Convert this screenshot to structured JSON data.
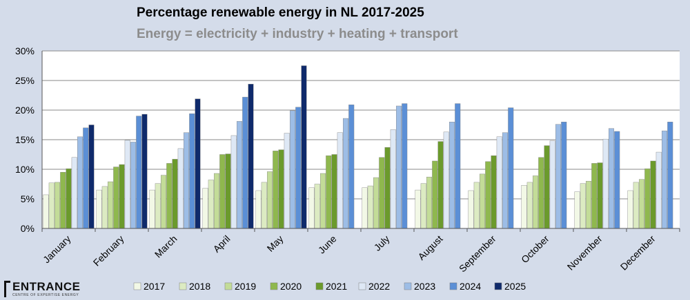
{
  "chart_data": {
    "type": "bar",
    "title": "Percentage renewable energy in NL 2017-2025",
    "subtitle": "Energy = electricity + industry + heating + transport",
    "xlabel": "",
    "ylabel": "",
    "ylim": [
      0,
      30
    ],
    "yticks": [
      "0%",
      "5%",
      "10%",
      "15%",
      "20%",
      "25%",
      "30%"
    ],
    "grid": true,
    "legend_position": "bottom",
    "categories": [
      "January",
      "February",
      "March",
      "April",
      "May",
      "June",
      "July",
      "August",
      "September",
      "October",
      "November",
      "December"
    ],
    "series": [
      {
        "name": "2017",
        "color": "#f2f8e6",
        "values": [
          5.7,
          6.5,
          6.5,
          6.8,
          6.4,
          6.9,
          6.9,
          6.5,
          6.4,
          7.3,
          6.2,
          6.4
        ]
      },
      {
        "name": "2018",
        "color": "#dcebc2",
        "values": [
          7.7,
          7.1,
          7.6,
          8.2,
          7.8,
          7.5,
          7.2,
          7.6,
          7.8,
          7.8,
          7.6,
          7.8
        ]
      },
      {
        "name": "2019",
        "color": "#c3dc98",
        "values": [
          7.8,
          7.9,
          9.0,
          9.3,
          9.6,
          9.3,
          8.6,
          8.7,
          9.2,
          8.9,
          8.0,
          8.3
        ]
      },
      {
        "name": "2020",
        "color": "#8fb84e",
        "values": [
          9.5,
          10.4,
          11.0,
          12.5,
          13.1,
          12.3,
          12.0,
          11.4,
          11.3,
          12.0,
          11.0,
          10.1
        ]
      },
      {
        "name": "2021",
        "color": "#6b9a2c",
        "values": [
          10.1,
          10.8,
          11.7,
          12.6,
          13.3,
          12.5,
          13.7,
          14.7,
          12.3,
          14.0,
          11.1,
          11.4
        ]
      },
      {
        "name": "2022",
        "color": "#dee8f5",
        "values": [
          12.0,
          14.9,
          13.5,
          15.7,
          16.1,
          16.2,
          16.7,
          16.3,
          15.5,
          14.8,
          15.1,
          12.9
        ]
      },
      {
        "name": "2023",
        "color": "#9dbde6",
        "values": [
          15.5,
          14.6,
          16.2,
          18.1,
          19.9,
          18.6,
          20.7,
          18.0,
          16.2,
          17.6,
          16.9,
          16.5
        ]
      },
      {
        "name": "2024",
        "color": "#5b8fd6",
        "values": [
          17.0,
          19.0,
          19.4,
          22.2,
          20.5,
          20.9,
          21.1,
          21.1,
          20.4,
          18.0,
          16.4,
          18.0
        ]
      },
      {
        "name": "2025",
        "color": "#0f2a6b",
        "values": [
          17.5,
          19.3,
          21.9,
          24.4,
          27.5,
          null,
          null,
          null,
          null,
          null,
          null,
          null
        ]
      }
    ]
  },
  "logo": {
    "name": "ENTRANCE",
    "tagline": "CENTRE OF EXPERTISE ENERGY"
  }
}
